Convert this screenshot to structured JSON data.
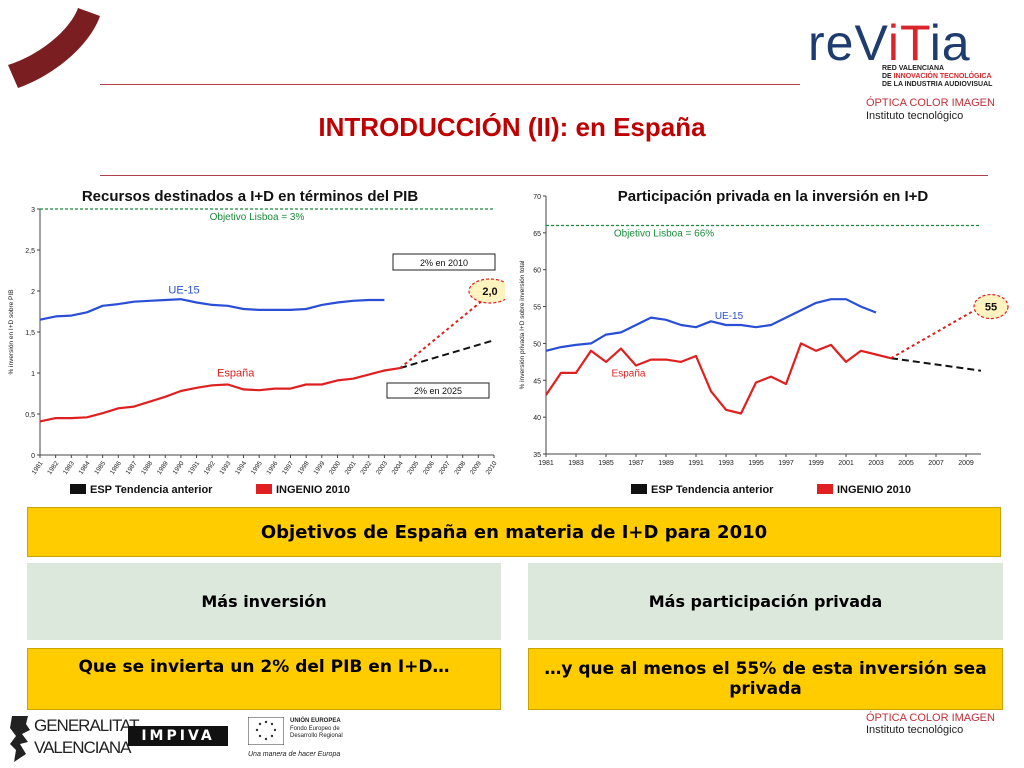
{
  "slide": {
    "title": "INTRODUCCIÓN (II): en España",
    "header_logo": {
      "brand_left": "reV",
      "brand_accent": "iT",
      "brand_right": "ia",
      "line1": "RED VALENCIANA",
      "line2_pre": "DE ",
      "line2_accent": "INNOVACIÓN TECNOLÓGICA",
      "line3": "DE LA INDUSTRIA AUDIOVISUAL",
      "optica": "ÓPTICA COLOR IMAGEN",
      "instituto": "Instituto tecnológico"
    },
    "footer": {
      "generalitat": "GENERALITAT",
      "valenciana": "VALENCIANA",
      "impiva": "IMPIVA",
      "eu_line1": "UNIÓN EUROPEA",
      "eu_line2": "Fondo Europeo de",
      "eu_line3": "Desarrollo Regional",
      "eu_tagline": "Una manera de hacer Europa",
      "optica": "ÓPTICA COLOR IMAGEN",
      "instituto": "Instituto tecnológico"
    },
    "objectives": {
      "header": "Objetivos de España en materia de I+D para 2010",
      "left_title": "Más inversión",
      "right_title": "Más participación privada",
      "left_text": "Que se invierta un 2% del PIB en I+D…",
      "right_text": "…y que al menos el 55% de esta inversión sea privada"
    },
    "colors": {
      "title_red": "#c00000",
      "band_yellow": "#ffcc00",
      "band_grey": "#dce8dc",
      "ue_blue": "#2a4fd6",
      "es_red": "#e02020",
      "target_green": "#1a8a3a"
    }
  },
  "chart_data": [
    {
      "type": "line",
      "title": "Recursos destinados a I+D en términos del PIB",
      "ylabel": "% inversión en I+D sobre PIB",
      "ylim": [
        0,
        3
      ],
      "yticks": [
        "0",
        "0,5",
        "1",
        "1,5",
        "2",
        "2,5",
        "3"
      ],
      "xticks": [
        "1981",
        "1982",
        "1983",
        "1984",
        "1985",
        "1986",
        "1987",
        "1988",
        "1989",
        "1990",
        "1991",
        "1992",
        "1993",
        "1994",
        "1995",
        "1996",
        "1997",
        "1998",
        "1999",
        "2000",
        "2001",
        "2002",
        "2003",
        "2004",
        "2005",
        "2006",
        "2007",
        "2008",
        "2009",
        "2010"
      ],
      "target_label": "Objetivo Lisboa = 3%",
      "target_value": 3,
      "series": [
        {
          "name": "UE-15",
          "x": [
            1981,
            1982,
            1983,
            1984,
            1985,
            1986,
            1987,
            1988,
            1989,
            1990,
            1991,
            1992,
            1993,
            1994,
            1995,
            1996,
            1997,
            1998,
            1999,
            2000,
            2001,
            2002,
            2003
          ],
          "values": [
            1.65,
            1.69,
            1.7,
            1.74,
            1.82,
            1.84,
            1.87,
            1.88,
            1.89,
            1.9,
            1.86,
            1.83,
            1.82,
            1.78,
            1.77,
            1.77,
            1.77,
            1.78,
            1.83,
            1.86,
            1.88,
            1.89,
            1.89
          ]
        },
        {
          "name": "España",
          "x": [
            1981,
            1982,
            1983,
            1984,
            1985,
            1986,
            1987,
            1988,
            1989,
            1990,
            1991,
            1992,
            1993,
            1994,
            1995,
            1996,
            1997,
            1998,
            1999,
            2000,
            2001,
            2002,
            2003,
            2004
          ],
          "values": [
            0.41,
            0.45,
            0.45,
            0.46,
            0.51,
            0.57,
            0.59,
            0.65,
            0.71,
            0.78,
            0.82,
            0.85,
            0.86,
            0.8,
            0.79,
            0.81,
            0.81,
            0.86,
            0.86,
            0.91,
            0.93,
            0.98,
            1.03,
            1.06
          ]
        },
        {
          "name": "ESP Tendencia anterior",
          "x": [
            2004,
            2010
          ],
          "values": [
            1.06,
            1.4
          ]
        },
        {
          "name": "INGENIO 2010",
          "x": [
            2004,
            2010
          ],
          "values": [
            1.06,
            2.0
          ]
        }
      ],
      "annotations": [
        "2% en 2010",
        "2,0",
        "2% en 2025"
      ]
    },
    {
      "type": "line",
      "title": "Participación privada en la inversión en I+D",
      "ylabel": "% inversión privada I+D sobre inversión total",
      "ylim": [
        35,
        70
      ],
      "yticks": [
        "35",
        "40",
        "45",
        "50",
        "55",
        "60",
        "65",
        "70"
      ],
      "xticks": [
        "1981",
        "1983",
        "1985",
        "1987",
        "1989",
        "1991",
        "1993",
        "1995",
        "1997",
        "1999",
        "2001",
        "2003",
        "2005",
        "2007",
        "2009"
      ],
      "target_label": "Objetivo Lisboa = 66%",
      "target_value": 66,
      "series": [
        {
          "name": "UE-15",
          "x": [
            1981,
            1982,
            1983,
            1984,
            1985,
            1986,
            1987,
            1988,
            1989,
            1990,
            1991,
            1992,
            1993,
            1994,
            1995,
            1996,
            1997,
            1998,
            1999,
            2000,
            2001,
            2002,
            2003
          ],
          "values": [
            49.0,
            49.5,
            49.8,
            50.0,
            51.2,
            51.5,
            52.5,
            53.5,
            53.2,
            52.5,
            52.2,
            53.0,
            52.5,
            52.5,
            52.2,
            52.5,
            53.5,
            54.5,
            55.5,
            56.0,
            56.0,
            55.0,
            54.2
          ]
        },
        {
          "name": "España",
          "x": [
            1981,
            1982,
            1983,
            1984,
            1985,
            1986,
            1987,
            1988,
            1989,
            1990,
            1991,
            1992,
            1993,
            1994,
            1995,
            1996,
            1997,
            1998,
            1999,
            2000,
            2001,
            2002,
            2003,
            2004
          ],
          "values": [
            43.0,
            46.0,
            46.0,
            49.0,
            47.5,
            49.3,
            47.0,
            47.8,
            47.8,
            47.5,
            48.3,
            43.5,
            41.0,
            40.5,
            44.7,
            45.5,
            44.5,
            50.0,
            49.0,
            49.8,
            47.5,
            49.0,
            48.5,
            48.0
          ]
        },
        {
          "name": "ESP Tendencia anterior",
          "x": [
            2004,
            2010
          ],
          "values": [
            48.0,
            46.3
          ]
        },
        {
          "name": "INGENIO 2010",
          "x": [
            2004,
            2010
          ],
          "values": [
            48.0,
            55.0
          ]
        }
      ],
      "annotations": [
        "55"
      ]
    }
  ],
  "legend": {
    "black": "ESP Tendencia anterior",
    "red": "INGENIO 2010"
  }
}
